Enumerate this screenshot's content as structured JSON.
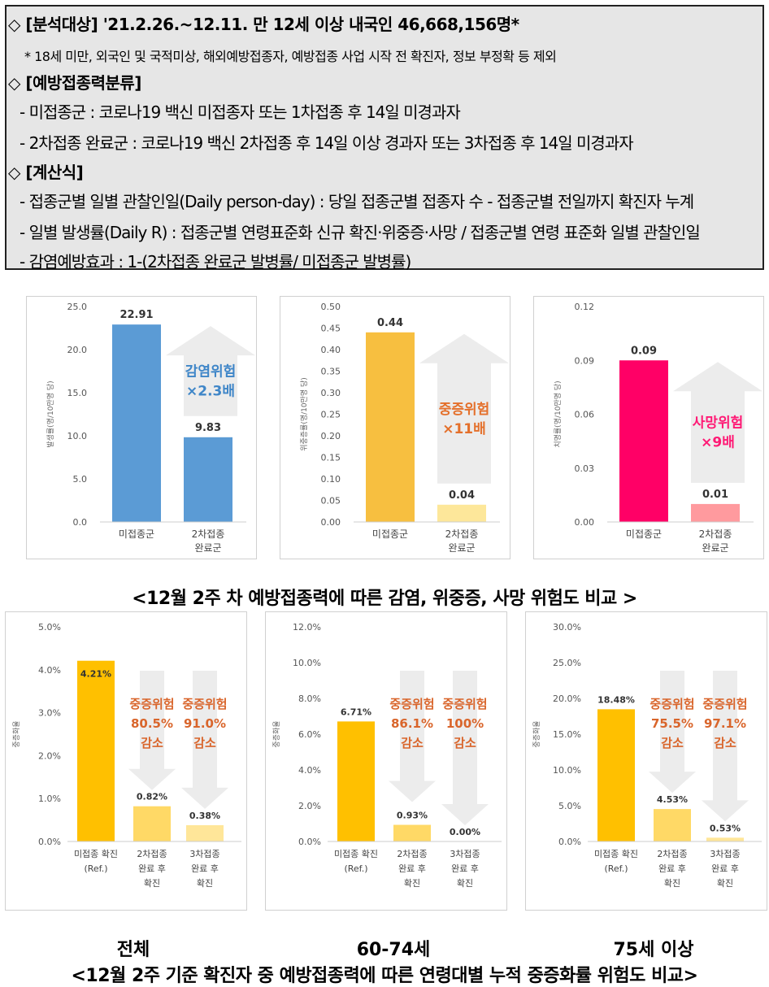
{
  "info": {
    "line1_head": "◇ [분석대상] '21.2.26.~12.11. 만 12세 이상 내국인 46,668,156명*",
    "line1_note": "* 18세 미만, 외국인 및 국적미상, 해외예방접종자, 예방접종 사업 시작 전 확진자, 정보 부정확 등 제외",
    "line2_head": "◇ [예방접종력분류]",
    "line2_a": "- 미접종군 : 코로나19 백신 미접종자 또는 1차접종 후 14일 미경과자",
    "line2_b": "- 2차접종 완료군 : 코로나19 백신 2차접종 후 14일 이상 경과자 또는 3차접종 후 14일 미경과자",
    "line3_head": "◇ [계산식]",
    "line3_a": "- 접종군별 일별 관찰인일(Daily person-day) : 당일 접종군별 접종자 수 - 접종군별 전일까지 확진자 누계",
    "line3_b": "- 일별 발생률(Daily R) : 접종군별 연령표준화 신규 확진·위중증·사망 / 접종군별 연령 표준화 일별 관찰인일",
    "line3_c": "- 감염예방효과 : 1-(2차접종 완료군 발병률/ 미접종군 발병률)"
  },
  "captions": {
    "top": "<12월 2주 차 예방접종력에 따른 감염, 위중증, 사망 위험도 비교 >",
    "bottom": "<12월 2주 기준 확진자 중 예방접종력에 따른 연령대별 누적 중증화률 위험도 비교>"
  },
  "age_labels": [
    "전체",
    "60-74세",
    "75세 이상"
  ],
  "chart_data": [
    {
      "type": "bar",
      "ylabel": "발생률(명/10만명 당)",
      "categories": [
        "미접종군",
        "2차접종\n완료군"
      ],
      "values": [
        22.91,
        9.83
      ],
      "value_labels": [
        "22.91",
        "9.83"
      ],
      "yticks": [
        "25.0",
        "20.0",
        "15.0",
        "10.0",
        "5.0",
        "0.0"
      ],
      "ylim": [
        0,
        25
      ],
      "colors": [
        "#5b9bd5",
        "#5b9bd5"
      ],
      "annotation": [
        "감염위험",
        "×2.3배"
      ],
      "annotation_color": "#3f86c8"
    },
    {
      "type": "bar",
      "ylabel": "위중증률(명/10만명 당)",
      "categories": [
        "미접종군",
        "2차접종\n완료군"
      ],
      "values": [
        0.44,
        0.04
      ],
      "value_labels": [
        "0.44",
        "0.04"
      ],
      "yticks": [
        "0.50",
        "0.45",
        "0.40",
        "0.35",
        "0.30",
        "0.25",
        "0.20",
        "0.15",
        "0.10",
        "0.05",
        "0.00"
      ],
      "ylim": [
        0,
        0.5
      ],
      "colors": [
        "#f7bf40",
        "#fde79a"
      ],
      "annotation": [
        "중증위험",
        "×11배"
      ],
      "annotation_color": "#e4702b"
    },
    {
      "type": "bar",
      "ylabel": "치명률(명/10만명 당)",
      "categories": [
        "미접종군",
        "2차접종\n완료군"
      ],
      "values": [
        0.09,
        0.01
      ],
      "value_labels": [
        "0.09",
        "0.01"
      ],
      "yticks": [
        "0.12",
        "0.09",
        "0.06",
        "0.03",
        "0.00"
      ],
      "ylim": [
        0,
        0.12
      ],
      "colors": [
        "#ff0066",
        "#ff9a9e"
      ],
      "annotation": [
        "사망위험",
        "×9배"
      ],
      "annotation_color": "#ff1a75"
    },
    {
      "type": "bar",
      "ylabel": "중증화율",
      "categories": [
        "미접종 확진\n(Ref.)",
        "2차접종\n완료 후\n확진",
        "3차접종\n완료 후\n확진"
      ],
      "values": [
        4.21,
        0.82,
        0.38
      ],
      "value_labels": [
        "4.21%",
        "0.82%",
        "0.38%"
      ],
      "yticks": [
        "5.0%",
        "4.0%",
        "3.0%",
        "2.0%",
        "1.0%",
        "0.0%"
      ],
      "ylim": [
        0,
        5
      ],
      "colors": [
        "#ffc000",
        "#ffd966",
        "#ffe699"
      ],
      "reductions": [
        [
          "중증위험",
          "80.5%",
          "감소"
        ],
        [
          "중증위험",
          "91.0%",
          "감소"
        ]
      ]
    },
    {
      "type": "bar",
      "ylabel": "중증화율",
      "categories": [
        "미접종 확진\n(Ref.)",
        "2차접종\n완료 후\n확진",
        "3차접종\n완료 후\n확진"
      ],
      "values": [
        6.71,
        0.93,
        0.0
      ],
      "value_labels": [
        "6.71%",
        "0.93%",
        "0.00%"
      ],
      "yticks": [
        "12.0%",
        "10.0%",
        "8.0%",
        "6.0%",
        "4.0%",
        "2.0%",
        "0.0%"
      ],
      "ylim": [
        0,
        12
      ],
      "colors": [
        "#ffc000",
        "#ffd966",
        "#ffe699"
      ],
      "reductions": [
        [
          "중증위험",
          "86.1%",
          "감소"
        ],
        [
          "중증위험",
          "100%",
          "감소"
        ]
      ]
    },
    {
      "type": "bar",
      "ylabel": "중증화율",
      "categories": [
        "미접종 확진\n(Ref.)",
        "2차접종\n완료 후\n확진",
        "3차접종\n완료 후\n확진"
      ],
      "values": [
        18.48,
        4.53,
        0.53
      ],
      "value_labels": [
        "18.48%",
        "4.53%",
        "0.53%"
      ],
      "yticks": [
        "30.0%",
        "25.0%",
        "20.0%",
        "15.0%",
        "10.0%",
        "5.0%",
        "0.0%"
      ],
      "ylim": [
        0,
        30
      ],
      "colors": [
        "#ffc000",
        "#ffd966",
        "#ffe699"
      ],
      "reductions": [
        [
          "중증위험",
          "75.5%",
          "감소"
        ],
        [
          "중증위험",
          "97.1%",
          "감소"
        ]
      ]
    }
  ]
}
